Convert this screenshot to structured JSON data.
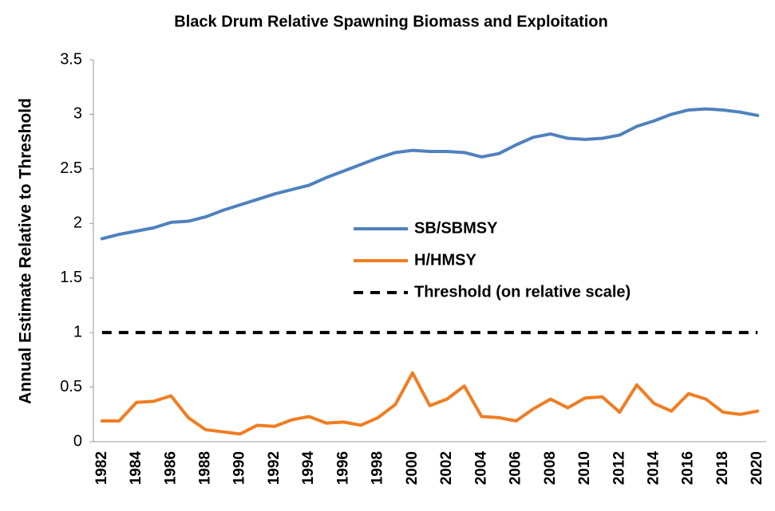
{
  "chart_data": {
    "type": "line",
    "title": "Black Drum Relative Spawning Biomass and Exploitation",
    "ylabel": "Annual Estimate Relative to Threshold",
    "categories": [
      "1982",
      null,
      "1984",
      null,
      "1986",
      null,
      "1988",
      null,
      "1990",
      null,
      "1992",
      null,
      "1994",
      null,
      "1996",
      null,
      "1998",
      null,
      "2000",
      null,
      "2002",
      null,
      "2004",
      null,
      "2006",
      null,
      "2008",
      null,
      "2010",
      null,
      "2012",
      null,
      "2014",
      null,
      "2016",
      null,
      "2018",
      null,
      "2020"
    ],
    "series": [
      {
        "name": "SB/SBMSY",
        "color": "#4f81bd",
        "style": "solid",
        "values": [
          1.86,
          1.9,
          1.93,
          1.96,
          2.01,
          2.02,
          2.06,
          2.12,
          2.17,
          2.22,
          2.27,
          2.31,
          2.35,
          2.42,
          2.48,
          2.54,
          2.6,
          2.65,
          2.67,
          2.66,
          2.66,
          2.65,
          2.61,
          2.64,
          2.72,
          2.79,
          2.82,
          2.78,
          2.77,
          2.78,
          2.81,
          2.89,
          2.94,
          3.0,
          3.04,
          3.05,
          3.04,
          3.02,
          2.99
        ]
      },
      {
        "name": "H/HMSY",
        "color": "#f07d22",
        "style": "solid",
        "values": [
          0.19,
          0.19,
          0.36,
          0.37,
          0.42,
          0.22,
          0.11,
          0.09,
          0.07,
          0.15,
          0.14,
          0.2,
          0.23,
          0.17,
          0.18,
          0.15,
          0.22,
          0.34,
          0.63,
          0.33,
          0.39,
          0.51,
          0.23,
          0.22,
          0.19,
          0.3,
          0.39,
          0.31,
          0.4,
          0.41,
          0.27,
          0.52,
          0.35,
          0.28,
          0.44,
          0.39,
          0.27,
          0.25,
          0.28
        ]
      },
      {
        "name": "Threshold (on relative scale)",
        "color": "#000000",
        "style": "dashed",
        "values": [
          1,
          1,
          1,
          1,
          1,
          1,
          1,
          1,
          1,
          1,
          1,
          1,
          1,
          1,
          1,
          1,
          1,
          1,
          1,
          1,
          1,
          1,
          1,
          1,
          1,
          1,
          1,
          1,
          1,
          1,
          1,
          1,
          1,
          1,
          1,
          1,
          1,
          1,
          1
        ]
      }
    ],
    "ylim": [
      0,
      3.5
    ],
    "yticks": [
      0,
      0.5,
      1,
      1.5,
      2,
      2.5,
      3,
      3.5
    ],
    "grid": false,
    "legend": "center"
  }
}
